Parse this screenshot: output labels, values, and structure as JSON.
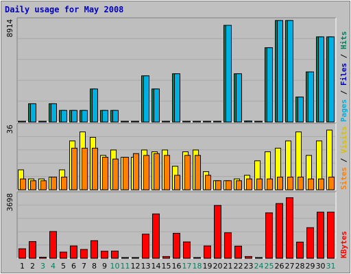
{
  "title": "Daily usage for May 2008",
  "colors": {
    "background": "#c0c0c0",
    "plot": "#bebebe",
    "hits": "#00805c",
    "files": "#00b0e0",
    "pages": "#00d0e0",
    "visits": "#ffff00",
    "sites": "#ff8000",
    "kbytes": "#ff0000",
    "weekend_label": "#00805c",
    "weekday_label": "#000000"
  },
  "panels": [
    {
      "name": "hits-files",
      "max_label": "8914",
      "side_labels": [
        {
          "text": "Pages",
          "color": "#00b0e0"
        },
        {
          "text": " / ",
          "color": "#000000"
        },
        {
          "text": "Files",
          "color": "#0000c0"
        },
        {
          "text": " / ",
          "color": "#000000"
        },
        {
          "text": "Hits",
          "color": "#00805c"
        }
      ]
    },
    {
      "name": "visits-sites",
      "max_label": "36",
      "side_labels": [
        {
          "text": "Sites",
          "color": "#ff8000"
        },
        {
          "text": " / ",
          "color": "#000000"
        },
        {
          "text": "Visits",
          "color": "#d8c000"
        }
      ]
    },
    {
      "name": "kbytes",
      "max_label": "3698",
      "side_labels": [
        {
          "text": "KBytes",
          "color": "#ff0000"
        }
      ]
    }
  ],
  "chart_data": {
    "type": "bar",
    "title": "Daily usage for May 2008",
    "categories": [
      "1",
      "2",
      "3",
      "4",
      "5",
      "6",
      "7",
      "8",
      "9",
      "10",
      "11",
      "12",
      "13",
      "14",
      "15",
      "16",
      "17",
      "18",
      "19",
      "20",
      "21",
      "22",
      "23",
      "24",
      "25",
      "26",
      "27",
      "28",
      "29",
      "30",
      "31"
    ],
    "weekend_days": [
      3,
      4,
      10,
      11,
      17,
      18,
      24,
      25,
      31
    ],
    "series": [
      {
        "name": "Hits",
        "panel": 0,
        "values": [
          40,
          1580,
          40,
          1580,
          1000,
          1000,
          1000,
          2860,
          1000,
          1000,
          40,
          40,
          4000,
          2860,
          40,
          4180,
          40,
          40,
          40,
          40,
          8380,
          4180,
          80,
          40,
          6440,
          8800,
          8800,
          2160,
          4340,
          7380,
          7380
        ]
      },
      {
        "name": "Files",
        "panel": 0,
        "values": [
          40,
          1580,
          40,
          1580,
          1000,
          1000,
          1000,
          2860,
          1000,
          1000,
          40,
          40,
          4000,
          2860,
          40,
          4180,
          40,
          40,
          40,
          40,
          8380,
          4180,
          80,
          40,
          6440,
          8800,
          8800,
          2160,
          4340,
          7380,
          7380
        ]
      },
      {
        "name": "Visits",
        "panel": 1,
        "values": [
          11,
          6,
          6,
          7,
          11,
          27,
          32,
          29,
          19,
          22,
          18,
          18,
          22,
          21,
          22,
          13,
          21,
          22,
          10,
          5,
          5,
          6,
          8,
          16,
          21,
          23,
          27,
          32,
          19,
          27,
          33
        ]
      },
      {
        "name": "Sites",
        "panel": 1,
        "values": [
          6,
          5,
          5,
          7,
          7,
          23,
          23,
          23,
          18,
          17,
          18,
          20,
          19,
          20,
          19,
          8,
          19,
          19,
          8,
          5,
          5,
          5,
          6,
          6,
          6,
          7,
          7,
          7,
          6,
          6,
          7
        ]
      },
      {
        "name": "KBytes",
        "panel": 2,
        "values": [
          540,
          950,
          60,
          1520,
          350,
          700,
          500,
          1000,
          400,
          410,
          40,
          40,
          1370,
          2520,
          100,
          1420,
          930,
          40,
          700,
          3000,
          1450,
          690,
          100,
          40,
          2580,
          3110,
          3440,
          920,
          1740,
          2620,
          2620
        ]
      }
    ],
    "panel_max": [
      8914,
      36,
      3698
    ]
  }
}
